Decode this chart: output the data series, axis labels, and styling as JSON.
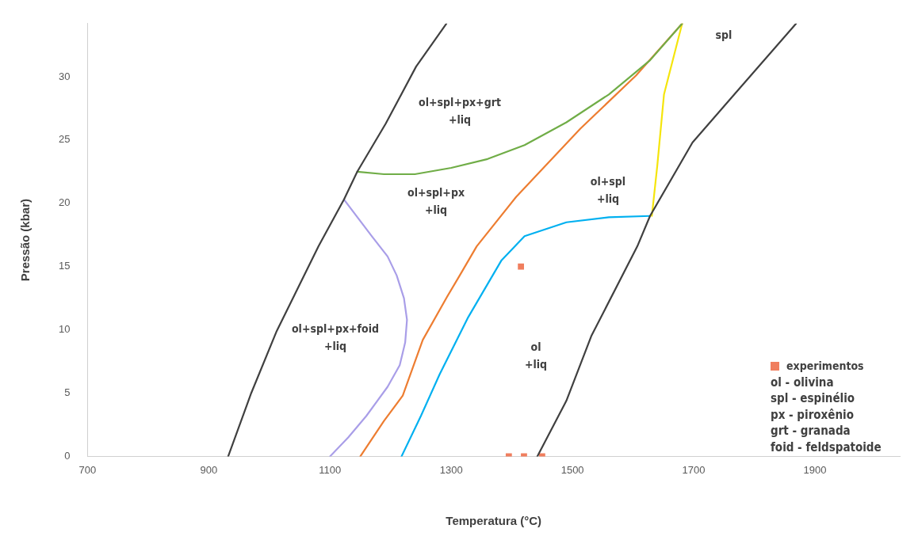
{
  "chart_data": {
    "type": "line",
    "xlabel": "Temperatura (°C)",
    "ylabel": "Pressão (kbar)",
    "xlim": [
      700,
      2040
    ],
    "ylim": [
      0,
      34.2
    ],
    "xticks": [
      700,
      900,
      1100,
      1300,
      1500,
      1700,
      1900
    ],
    "yticks": [
      0,
      5,
      10,
      15,
      20,
      25,
      30
    ],
    "grid": false,
    "legend": "right",
    "series": [
      {
        "type": "line",
        "color": "#404040",
        "x": [
          932,
          970,
          1012,
          1081,
          1123,
          1145,
          1192,
          1242,
          1292
        ],
        "values": [
          0,
          5,
          9.9,
          16.6,
          20.3,
          22.5,
          26.3,
          30.8,
          34.2
        ]
      },
      {
        "type": "line",
        "color": "#404040",
        "x": [
          1442,
          1490,
          1531,
          1607,
          1628,
          1698,
          1767,
          1869
        ],
        "values": [
          0,
          4.4,
          9.5,
          16.6,
          19,
          24.8,
          28.6,
          34.2
        ]
      },
      {
        "type": "line",
        "color": "#70ad47",
        "x": [
          1145,
          1189,
          1240,
          1300,
          1360,
          1421,
          1490,
          1560,
          1628,
          1681
        ],
        "values": [
          22.5,
          22.3,
          22.3,
          22.8,
          23.5,
          24.6,
          26.4,
          28.6,
          31.3,
          34.2
        ]
      },
      {
        "type": "line",
        "color": "#ed7d31",
        "x": [
          1150,
          1189,
          1220,
          1253,
          1293,
          1314,
          1342,
          1407,
          1513,
          1605,
          1681
        ],
        "values": [
          0,
          2.8,
          4.8,
          9.2,
          12.6,
          14.3,
          16.6,
          20.5,
          25.9,
          30.1,
          34.2
        ]
      },
      {
        "type": "line",
        "color": "#00b0f0",
        "x": [
          1218,
          1250,
          1281,
          1328,
          1383,
          1421,
          1490,
          1560,
          1628
        ],
        "values": [
          0,
          3.2,
          6.5,
          11,
          15.5,
          17.4,
          18.5,
          18.9,
          19
        ]
      },
      {
        "type": "line",
        "color": "#f5e50c",
        "x": [
          1631,
          1640,
          1651,
          1681
        ],
        "values": [
          19,
          23,
          28.6,
          34.2
        ]
      },
      {
        "type": "line",
        "color": "#a99ee8",
        "x": [
          1123,
          1169,
          1195,
          1210,
          1222,
          1227,
          1224,
          1215,
          1195,
          1160,
          1130,
          1100
        ],
        "values": [
          20.3,
          17.4,
          15.8,
          14.3,
          12.5,
          10.8,
          9,
          7.2,
          5.5,
          3.2,
          1.5,
          0
        ]
      },
      {
        "type": "scatter",
        "name": "experimentos",
        "color": "#f07e5e",
        "marker": "square",
        "x": [
          1415,
          1395,
          1420,
          1450
        ],
        "values": [
          15,
          0,
          0,
          0
        ]
      }
    ],
    "annotations": [
      "ol+spl+px+grt\n+liq",
      "ol+spl+px\n+liq",
      "ol+spl\n+liq",
      "spl",
      "ol+spl+px+foid\n+liq",
      "ol\n+liq",
      "ol - olivina",
      "spl - espinélio",
      "px - piroxênio",
      "grt - granada",
      "foid - feldspatoide"
    ]
  }
}
